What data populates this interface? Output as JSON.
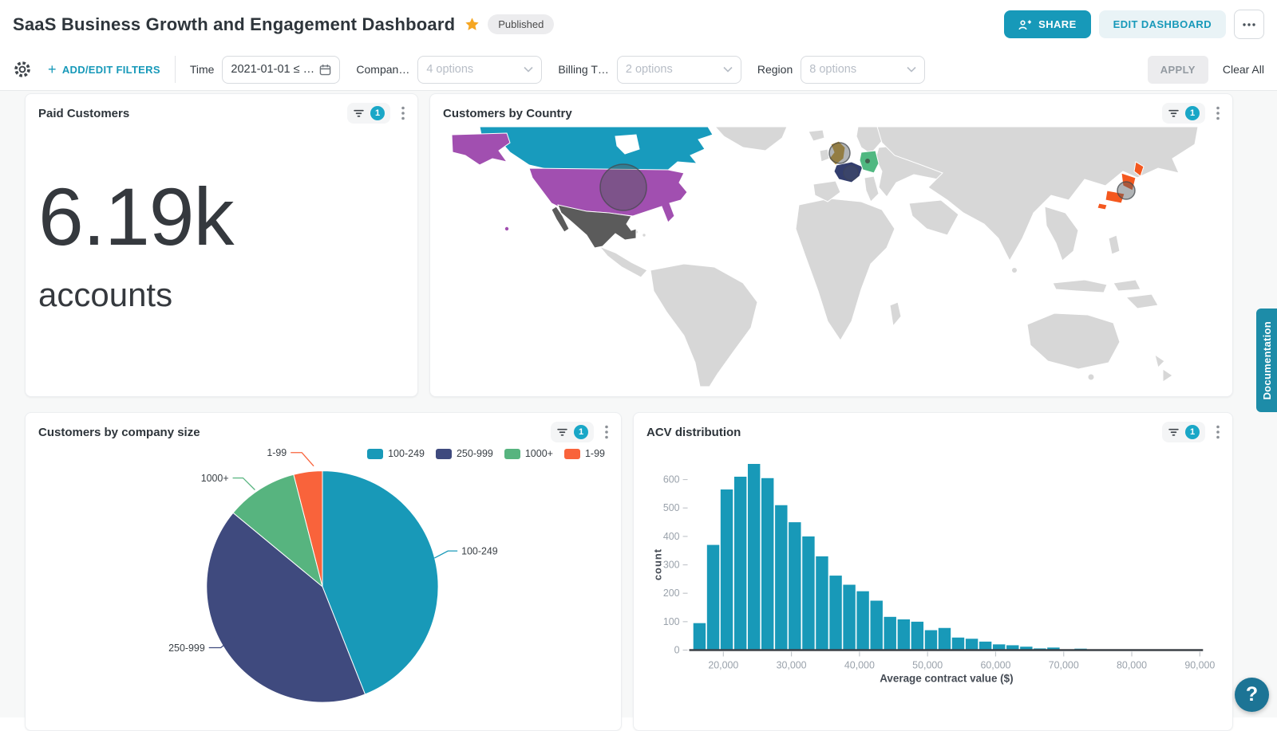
{
  "header": {
    "title": "SaaS Business Growth and Engagement Dashboard",
    "status_badge": "Published",
    "share_label": "SHARE",
    "edit_label": "EDIT DASHBOARD"
  },
  "filter_bar": {
    "add_icon": "+",
    "add_edit_label": "ADD/EDIT FILTERS",
    "apply_label": "APPLY",
    "clear_all_label": "Clear All",
    "filters": [
      {
        "label": "Time",
        "value": "2021-01-01 ≤ …",
        "type": "date"
      },
      {
        "label": "Compan…",
        "value": "4 options",
        "type": "select"
      },
      {
        "label": "Billing T…",
        "value": "2 options",
        "type": "select"
      },
      {
        "label": "Region",
        "value": "8 options",
        "type": "select"
      }
    ]
  },
  "cards": {
    "paid_customers": {
      "title": "Paid Customers",
      "filter_count": "1",
      "value": "6.19k",
      "unit": "accounts"
    },
    "customers_by_country": {
      "title": "Customers by Country",
      "filter_count": "1"
    },
    "company_size": {
      "title": "Customers by company size",
      "filter_count": "1"
    },
    "acv": {
      "title": "ACV distribution",
      "filter_count": "1"
    }
  },
  "chart_data": [
    {
      "name": "customers_by_company_size",
      "type": "pie",
      "title": "Customers by company size",
      "categories": [
        "100-249",
        "250-999",
        "1000+",
        "1-99"
      ],
      "values_pct": [
        44,
        42,
        10,
        4
      ],
      "colors": [
        "#1899B8",
        "#3F4A7E",
        "#57B47F",
        "#F9633B"
      ],
      "legend_position": "top-right"
    },
    {
      "name": "acv_distribution",
      "type": "histogram",
      "title": "ACV distribution",
      "xlabel": "Average contract value ($)",
      "ylabel": "count",
      "bar_color": "#1899B8",
      "bin_start": 15500,
      "bin_width": 2000,
      "counts": [
        95,
        370,
        565,
        610,
        655,
        605,
        510,
        450,
        400,
        330,
        262,
        230,
        207,
        174,
        117,
        108,
        100,
        70,
        78,
        44,
        40,
        30,
        20,
        17,
        12,
        6,
        9,
        2,
        5
      ],
      "xlim": [
        15500,
        92500
      ],
      "ylim": [
        0,
        680
      ],
      "xticks": [
        20000,
        30000,
        40000,
        50000,
        60000,
        70000,
        80000,
        90000
      ],
      "xtick_labels": [
        "20,000",
        "30,000",
        "40,000",
        "50,000",
        "60,000",
        "70,000",
        "80,000",
        "90,000"
      ],
      "yticks": [
        0,
        100,
        200,
        300,
        400,
        500,
        600
      ],
      "grid": false
    },
    {
      "name": "customers_by_country",
      "type": "map",
      "title": "Customers by Country",
      "base_color": "#D7D7D7",
      "countries": [
        {
          "country": "United States",
          "color": "#A14FB0",
          "bubble": "large"
        },
        {
          "country": "Canada",
          "color": "#189BBD",
          "bubble": "none"
        },
        {
          "country": "Mexico",
          "color": "#5B5B5B",
          "bubble": "none"
        },
        {
          "country": "United Kingdom",
          "color": "#C99B2E",
          "bubble": "medium"
        },
        {
          "country": "France",
          "color": "#333E6E",
          "bubble": "small"
        },
        {
          "country": "Germany",
          "color": "#50B881",
          "bubble": "dot"
        },
        {
          "country": "Japan",
          "color": "#F4581F",
          "bubble": "medium"
        }
      ]
    }
  ],
  "side": {
    "documentation_label": "Documentation",
    "help_label": "?"
  },
  "colors": {
    "accent_teal": "#1799B9",
    "badge_teal": "#1AA7C7",
    "doc_tab": "#1D8CA8",
    "help_fab": "#1C7495",
    "star_gold": "#F5A623"
  }
}
